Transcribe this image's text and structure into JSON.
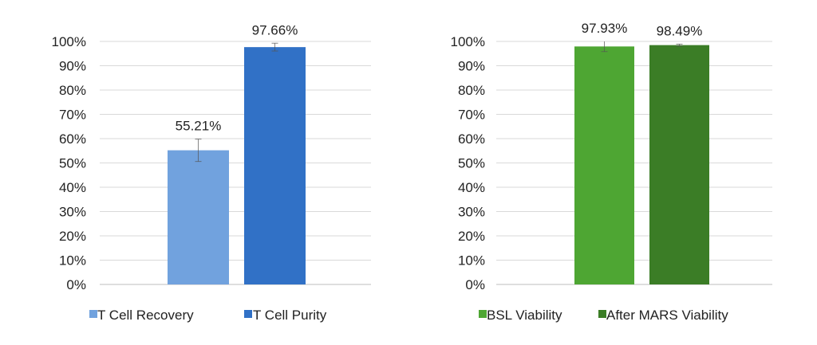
{
  "chart_data": [
    {
      "type": "bar",
      "categories": [
        "T Cell Recovery",
        "T Cell Purity"
      ],
      "values": [
        55.21,
        97.66
      ],
      "error": [
        4.6,
        1.6
      ],
      "data_labels": [
        "55.21%",
        "97.66%"
      ],
      "colors": [
        "#71A2DE",
        "#3171C6"
      ],
      "ylim": [
        0,
        100
      ],
      "yticks": [
        "0%",
        "10%",
        "20%",
        "30%",
        "40%",
        "50%",
        "60%",
        "70%",
        "80%",
        "90%",
        "100%"
      ],
      "grid": true,
      "legend": "bottom"
    },
    {
      "type": "bar",
      "categories": [
        "BSL Viability",
        "After MARS Viability"
      ],
      "values": [
        97.93,
        98.49
      ],
      "error": [
        2.1,
        0.4
      ],
      "data_labels": [
        "97.93%",
        "98.49%"
      ],
      "colors": [
        "#4EA633",
        "#3B7D26"
      ],
      "ylim": [
        0,
        100
      ],
      "yticks": [
        "0%",
        "10%",
        "20%",
        "30%",
        "40%",
        "50%",
        "60%",
        "70%",
        "80%",
        "90%",
        "100%"
      ],
      "grid": true,
      "legend": "bottom"
    }
  ]
}
